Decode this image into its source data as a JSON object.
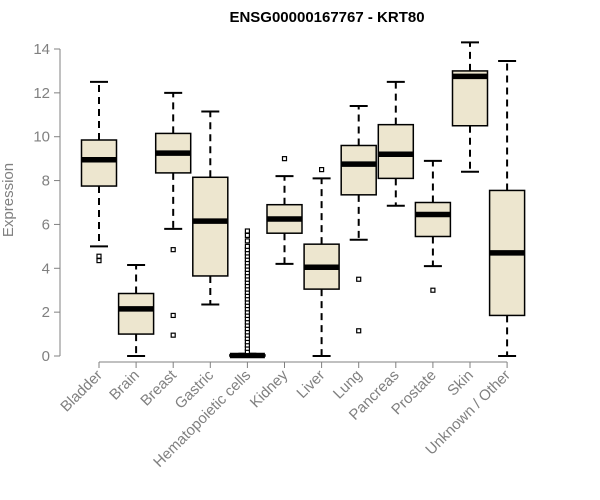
{
  "chart_data": {
    "type": "boxplot",
    "title": "ENSG00000167767 - KRT80",
    "xlabel": "",
    "ylabel": "Expression",
    "ylim": [
      0,
      14
    ],
    "yticks": [
      0,
      2,
      4,
      6,
      8,
      10,
      12,
      14
    ],
    "grid": false,
    "colors": {
      "box_fill": "#ede6cf",
      "stroke": "#000000",
      "axis": "#808080",
      "tick_text": "#808080"
    },
    "categories": [
      "Bladder",
      "Brain",
      "Breast",
      "Gastric",
      "Hematopoietic cells",
      "Kidney",
      "Liver",
      "Lung",
      "Pancreas",
      "Prostate",
      "Skin",
      "Unknown / Other"
    ],
    "boxes": [
      {
        "name": "Bladder",
        "whisker_low": 5.0,
        "q1": 7.75,
        "median": 8.95,
        "q3": 9.85,
        "whisker_high": 12.5,
        "outliers": [
          4.35,
          4.55
        ]
      },
      {
        "name": "Brain",
        "whisker_low": 0.0,
        "q1": 1.0,
        "median": 2.15,
        "q3": 2.85,
        "whisker_high": 4.15,
        "outliers": []
      },
      {
        "name": "Breast",
        "whisker_low": 5.8,
        "q1": 8.35,
        "median": 9.25,
        "q3": 10.15,
        "whisker_high": 12.0,
        "outliers": [
          4.85,
          1.85,
          0.95
        ]
      },
      {
        "name": "Gastric",
        "whisker_low": 2.35,
        "q1": 3.65,
        "median": 6.15,
        "q3": 8.15,
        "whisker_high": 11.15,
        "outliers": []
      },
      {
        "name": "Hematopoietic cells",
        "whisker_low": 0.0,
        "q1": 0.0,
        "median": 0.02,
        "q3": 0.05,
        "whisker_high": 0.1,
        "outliers": [
          0.2,
          0.35,
          0.5,
          0.65,
          0.8,
          0.95,
          1.1,
          1.25,
          1.4,
          1.55,
          1.7,
          1.85,
          2.0,
          2.15,
          2.3,
          2.45,
          2.6,
          2.75,
          2.9,
          3.05,
          3.2,
          3.35,
          3.5,
          3.65,
          3.8,
          3.95,
          4.1,
          4.25,
          4.4,
          4.55,
          4.7,
          4.85,
          5.0,
          5.25,
          5.5,
          5.7
        ]
      },
      {
        "name": "Kidney",
        "whisker_low": 4.2,
        "q1": 5.6,
        "median": 6.25,
        "q3": 6.9,
        "whisker_high": 8.2,
        "outliers": [
          9.0
        ]
      },
      {
        "name": "Liver",
        "whisker_low": 0.0,
        "q1": 3.05,
        "median": 4.05,
        "q3": 5.1,
        "whisker_high": 8.1,
        "outliers": [
          8.5
        ]
      },
      {
        "name": "Lung",
        "whisker_low": 5.3,
        "q1": 7.35,
        "median": 8.75,
        "q3": 9.6,
        "whisker_high": 11.4,
        "outliers": [
          3.5,
          1.15
        ]
      },
      {
        "name": "Pancreas",
        "whisker_low": 6.85,
        "q1": 8.1,
        "median": 9.2,
        "q3": 10.55,
        "whisker_high": 12.5,
        "outliers": []
      },
      {
        "name": "Prostate",
        "whisker_low": 4.1,
        "q1": 5.45,
        "median": 6.45,
        "q3": 7.0,
        "whisker_high": 8.9,
        "outliers": [
          3.0
        ]
      },
      {
        "name": "Skin",
        "whisker_low": 8.4,
        "q1": 10.5,
        "median": 12.75,
        "q3": 13.0,
        "whisker_high": 14.3,
        "outliers": []
      },
      {
        "name": "Unknown / Other",
        "whisker_low": 0.0,
        "q1": 1.85,
        "median": 4.7,
        "q3": 7.55,
        "whisker_high": 13.45,
        "outliers": []
      }
    ]
  }
}
